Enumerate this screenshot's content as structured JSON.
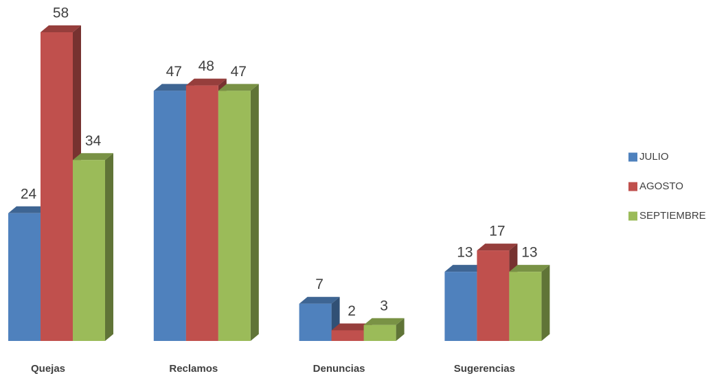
{
  "chart_data": {
    "type": "bar3d",
    "categories": [
      "Quejas",
      "Reclamos",
      "Denuncias",
      "Sugerencias"
    ],
    "series": [
      {
        "name": "JULIO",
        "color": "#4f81bd",
        "values": [
          24,
          47,
          7,
          13
        ]
      },
      {
        "name": "AGOSTO",
        "color": "#c0504d",
        "values": [
          58,
          48,
          2,
          17
        ]
      },
      {
        "name": "SEPTIEMBRE",
        "color": "#9bbb59",
        "values": [
          34,
          47,
          3,
          13
        ]
      }
    ],
    "legend": "right"
  }
}
